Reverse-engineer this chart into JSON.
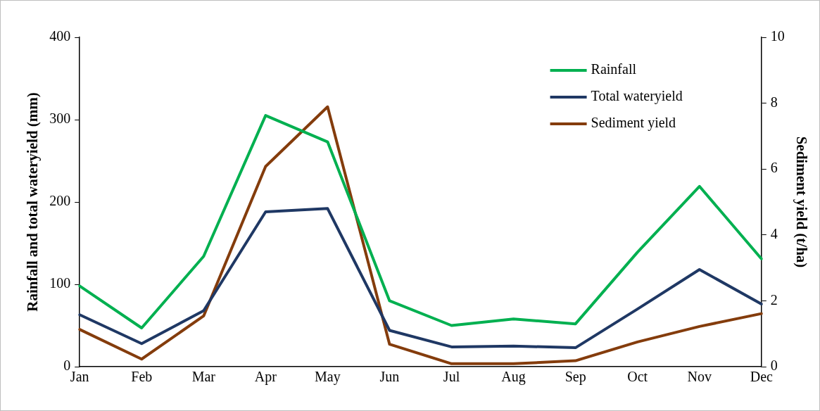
{
  "chart_data": {
    "type": "line",
    "categories": [
      "Jan",
      "Feb",
      "Mar",
      "Apr",
      "May",
      "Jun",
      "Jul",
      "Aug",
      "Sep",
      "Oct",
      "Nov",
      "Dec"
    ],
    "series": [
      {
        "name": "Rainfall",
        "color": "#00b050",
        "values": [
          98,
          47,
          134,
          305,
          273,
          80,
          50,
          58,
          52,
          139,
          219,
          131
        ]
      },
      {
        "name": "Total wateryield",
        "color": "#1f3864",
        "values": [
          63,
          28,
          68,
          188,
          192,
          44,
          24,
          25,
          23,
          70,
          118,
          76
        ]
      },
      {
        "name": "Sediment yield",
        "color": "#843c0c",
        "axis": "y2",
        "values": [
          1.13,
          0.23,
          1.54,
          6.08,
          7.89,
          0.68,
          0.09,
          0.09,
          0.18,
          0.75,
          1.22,
          1.61
        ]
      }
    ],
    "ylabel": "Rainfall and total wateryield (mm)",
    "y2label": "Sediment yield (t/ha)",
    "ylim": [
      0,
      400
    ],
    "yticks": [
      0,
      100,
      200,
      300,
      400
    ],
    "y2lim": [
      0,
      10
    ],
    "y2ticks": [
      0,
      2,
      4,
      6,
      8,
      10
    ],
    "grid": false,
    "legend": "top right",
    "marker": "none",
    "line_style": "solid"
  }
}
